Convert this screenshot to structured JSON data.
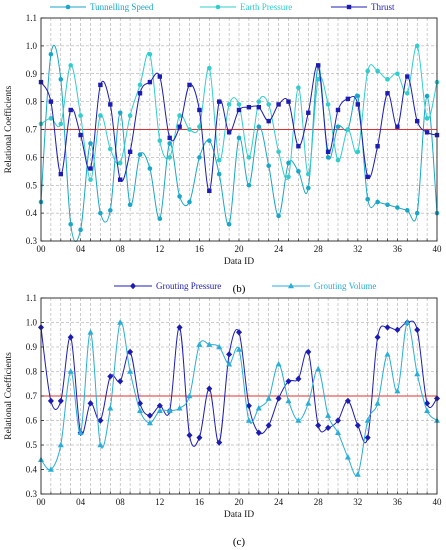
{
  "chart_data": [
    {
      "type": "line",
      "caption": "(b)",
      "xlabel": "Data ID",
      "ylabel": "Relational Coefficients",
      "xlim": [
        0,
        40
      ],
      "ylim": [
        0.3,
        1.1
      ],
      "xticks": [
        "00",
        "04",
        "08",
        "12",
        "16",
        "20",
        "24",
        "28",
        "32",
        "36",
        "40"
      ],
      "xtick_values": [
        0,
        4,
        8,
        12,
        16,
        20,
        24,
        28,
        32,
        36,
        40
      ],
      "yticks": [
        "0.3",
        "0.4",
        "0.5",
        "0.6",
        "0.7",
        "0.8",
        "0.9",
        "1.0",
        "1.1"
      ],
      "ytick_values": [
        0.3,
        0.4,
        0.5,
        0.6,
        0.7,
        0.8,
        0.9,
        1.0,
        1.1
      ],
      "grid": true,
      "legend_position": "top",
      "reference_line": {
        "y": 0.7,
        "color": "#e03030"
      },
      "series": [
        {
          "name": "Tunnelling Speed",
          "color": "#1aa6c8",
          "marker": "circle",
          "x": [
            0,
            1,
            2,
            3,
            4,
            5,
            6,
            7,
            8,
            9,
            10,
            11,
            12,
            13,
            14,
            15,
            16,
            17,
            18,
            19,
            20,
            21,
            22,
            23,
            24,
            25,
            26,
            27,
            28,
            29,
            30,
            31,
            32,
            33,
            34,
            35,
            36,
            37,
            38,
            39,
            40
          ],
          "values": [
            0.44,
            0.97,
            0.88,
            0.36,
            0.34,
            0.65,
            0.4,
            0.41,
            0.76,
            0.43,
            0.61,
            0.56,
            0.38,
            0.65,
            0.46,
            0.44,
            0.6,
            0.66,
            0.54,
            0.36,
            0.67,
            0.5,
            0.71,
            0.57,
            0.39,
            0.58,
            0.55,
            0.49,
            0.93,
            0.6,
            0.71,
            0.7,
            0.82,
            0.45,
            0.44,
            0.43,
            0.42,
            0.41,
            0.4,
            0.82,
            0.4
          ]
        },
        {
          "name": "Earth Pressure",
          "color": "#33cccc",
          "marker": "circle",
          "x": [
            0,
            1,
            2,
            3,
            4,
            5,
            6,
            7,
            8,
            9,
            10,
            11,
            12,
            13,
            14,
            15,
            16,
            17,
            18,
            19,
            20,
            21,
            22,
            23,
            24,
            25,
            26,
            27,
            28,
            29,
            30,
            31,
            32,
            33,
            34,
            35,
            36,
            37,
            38,
            39,
            40
          ],
          "values": [
            0.72,
            0.74,
            0.72,
            0.93,
            0.75,
            0.52,
            0.75,
            0.63,
            0.58,
            0.75,
            0.86,
            0.97,
            0.66,
            0.6,
            0.75,
            0.7,
            0.71,
            0.92,
            0.59,
            0.79,
            0.79,
            0.6,
            0.8,
            0.79,
            0.62,
            0.53,
            0.85,
            0.54,
            0.88,
            0.79,
            0.59,
            0.7,
            0.62,
            0.91,
            0.91,
            0.88,
            0.9,
            0.83,
            1.0,
            0.74,
            0.87
          ]
        },
        {
          "name": "Thrust",
          "color": "#1c1cb4",
          "marker": "square",
          "x": [
            0,
            1,
            2,
            3,
            4,
            5,
            6,
            7,
            8,
            9,
            10,
            11,
            12,
            13,
            14,
            15,
            16,
            17,
            18,
            19,
            20,
            21,
            22,
            23,
            24,
            25,
            26,
            27,
            28,
            29,
            30,
            31,
            32,
            33,
            34,
            35,
            36,
            37,
            38,
            39,
            40
          ],
          "values": [
            0.87,
            0.8,
            0.54,
            0.77,
            0.68,
            0.56,
            0.86,
            0.79,
            0.52,
            0.62,
            0.83,
            0.87,
            0.89,
            0.67,
            0.71,
            0.86,
            0.77,
            0.48,
            0.8,
            0.69,
            0.77,
            0.78,
            0.78,
            0.73,
            0.79,
            0.8,
            0.64,
            0.76,
            0.93,
            0.62,
            0.77,
            0.81,
            0.79,
            0.53,
            0.64,
            0.83,
            0.71,
            0.89,
            0.73,
            0.69,
            0.68
          ]
        }
      ]
    },
    {
      "type": "line",
      "caption": "(c)",
      "xlabel": "Data ID",
      "ylabel": "Relational Coefficients",
      "xlim": [
        0,
        40
      ],
      "ylim": [
        0.3,
        1.1
      ],
      "xticks": [
        "00",
        "04",
        "08",
        "12",
        "16",
        "20",
        "24",
        "28",
        "32",
        "36",
        "40"
      ],
      "xtick_values": [
        0,
        4,
        8,
        12,
        16,
        20,
        24,
        28,
        32,
        36,
        40
      ],
      "yticks": [
        "0.3",
        "0.4",
        "0.5",
        "0.6",
        "0.7",
        "0.8",
        "0.9",
        "1.0",
        "1.1"
      ],
      "ytick_values": [
        0.3,
        0.4,
        0.5,
        0.6,
        0.7,
        0.8,
        0.9,
        1.0,
        1.1
      ],
      "grid": true,
      "legend_position": "top",
      "reference_line": {
        "y": 0.7,
        "color": "#e03030"
      },
      "series": [
        {
          "name": "Grouting Pressure",
          "color": "#1c1cb4",
          "marker": "diamond",
          "x": [
            0,
            1,
            2,
            3,
            4,
            5,
            6,
            7,
            8,
            9,
            10,
            11,
            12,
            13,
            14,
            15,
            16,
            17,
            18,
            19,
            20,
            21,
            22,
            23,
            24,
            25,
            26,
            27,
            28,
            29,
            30,
            31,
            32,
            33,
            34,
            35,
            36,
            37,
            38,
            39,
            40
          ],
          "values": [
            0.98,
            0.68,
            0.68,
            0.94,
            0.55,
            0.67,
            0.6,
            0.78,
            0.76,
            0.88,
            0.67,
            0.62,
            0.66,
            0.64,
            0.98,
            0.54,
            0.53,
            0.73,
            0.51,
            0.87,
            0.96,
            0.66,
            0.55,
            0.58,
            0.69,
            0.76,
            0.77,
            0.88,
            0.58,
            0.57,
            0.6,
            0.68,
            0.58,
            0.53,
            0.94,
            0.98,
            0.97,
            1.0,
            0.97,
            0.67,
            0.69
          ]
        },
        {
          "name": "Grouting Volume",
          "color": "#2aaed8",
          "marker": "triangle",
          "x": [
            0,
            1,
            2,
            3,
            4,
            5,
            6,
            7,
            8,
            9,
            10,
            11,
            12,
            13,
            14,
            15,
            16,
            17,
            18,
            19,
            20,
            21,
            22,
            23,
            24,
            25,
            26,
            27,
            28,
            29,
            30,
            31,
            32,
            33,
            34,
            35,
            36,
            37,
            38,
            39,
            40
          ],
          "values": [
            0.44,
            0.4,
            0.5,
            0.8,
            0.55,
            0.96,
            0.5,
            0.65,
            1.0,
            0.8,
            0.64,
            0.59,
            0.64,
            0.64,
            0.65,
            0.7,
            0.91,
            0.91,
            0.9,
            0.83,
            0.89,
            0.6,
            0.65,
            0.69,
            0.83,
            0.68,
            0.6,
            0.67,
            0.81,
            0.62,
            0.55,
            0.45,
            0.38,
            0.6,
            0.67,
            0.87,
            0.72,
            1.0,
            0.79,
            0.64,
            0.6
          ]
        }
      ]
    }
  ]
}
